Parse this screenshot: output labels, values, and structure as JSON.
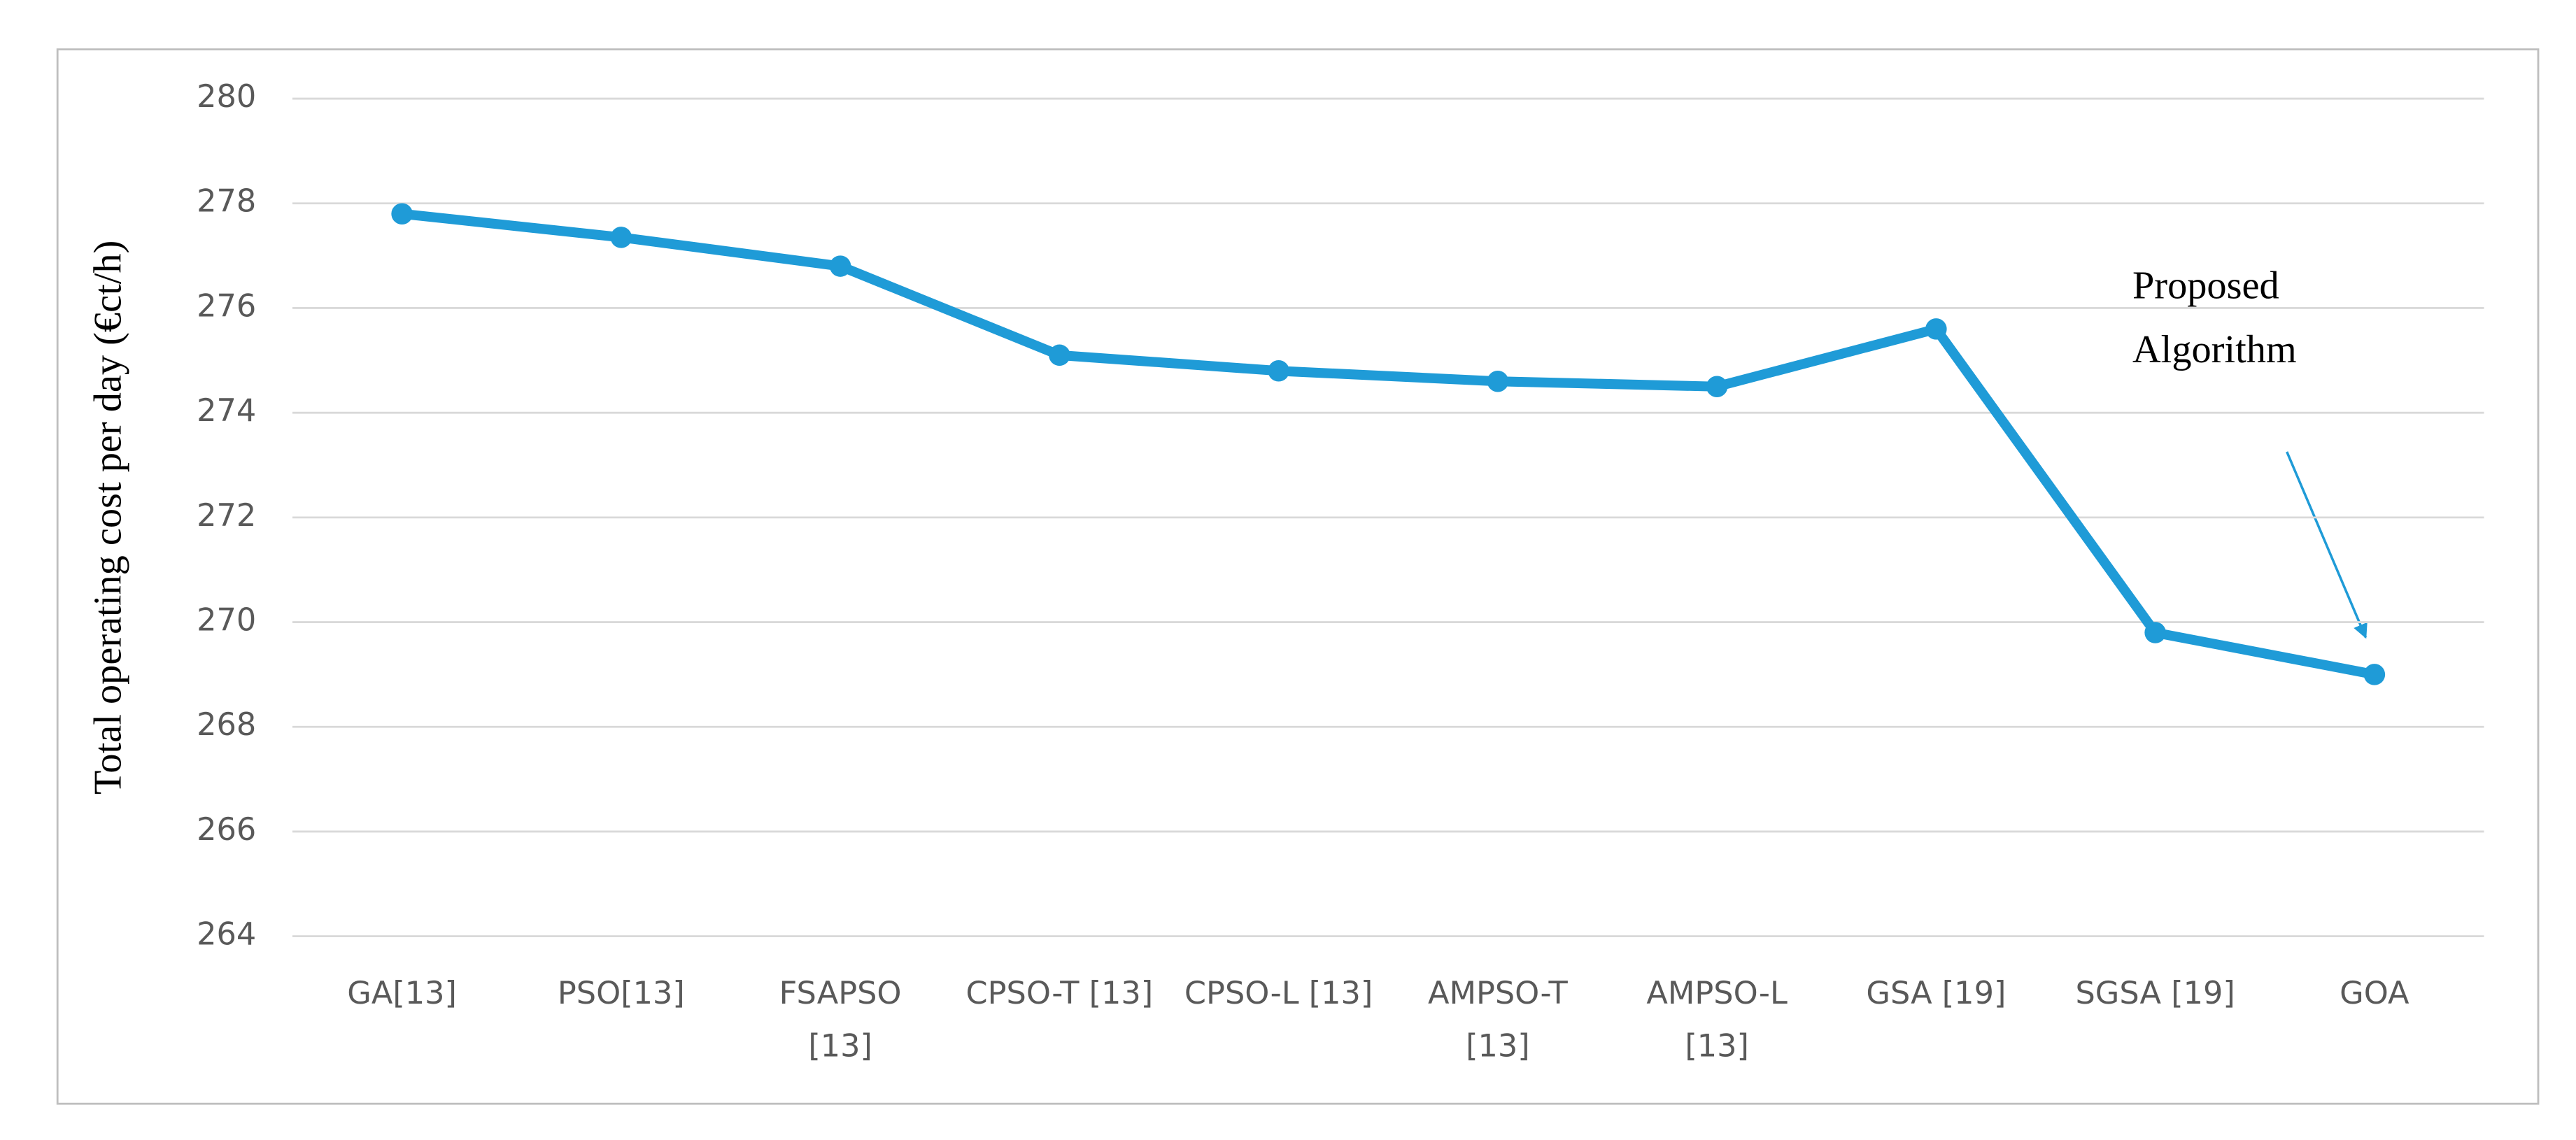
{
  "chart_data": {
    "type": "line",
    "y_label": "Total operating cost per day (€ct/h)",
    "annotation": [
      "Proposed",
      "Algorithm"
    ],
    "categories": [
      [
        "GA[13]"
      ],
      [
        "PSO[13]"
      ],
      [
        "FSAPSO",
        "[13]"
      ],
      [
        "CPSO-T [13]"
      ],
      [
        "CPSO-L [13]"
      ],
      [
        "AMPSO-T",
        "[13]"
      ],
      [
        "AMPSO-L",
        "[13]"
      ],
      [
        "GSA [19]"
      ],
      [
        "SGSA [19]"
      ],
      [
        "GOA"
      ]
    ],
    "series": [
      {
        "color": "#1f9bd7",
        "values": [
          277.8,
          277.35,
          276.8,
          275.1,
          274.8,
          274.6,
          274.5,
          275.6,
          269.8,
          269.0
        ]
      }
    ],
    "ylim": [
      264,
      280
    ],
    "yticks": [
      264,
      266,
      268,
      270,
      272,
      274,
      276,
      278,
      280
    ],
    "grid": true
  }
}
